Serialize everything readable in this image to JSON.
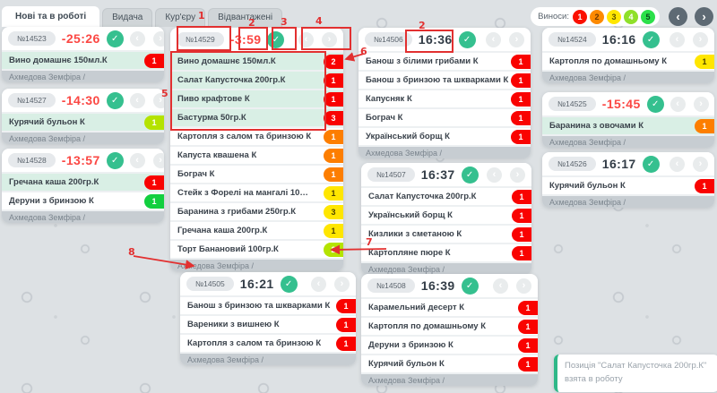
{
  "header": {
    "tabs": [
      {
        "label": "Нові та в роботі",
        "active": true
      },
      {
        "label": "Видача",
        "active": false
      },
      {
        "label": "Кур'єру",
        "active": false
      },
      {
        "label": "Відвантажені",
        "active": false
      }
    ],
    "takeouts_label": "Виноси:",
    "takeout_levels": [
      {
        "value": "1",
        "color": "#fb1000",
        "text_color": "#ffffff"
      },
      {
        "value": "2",
        "color": "#fd8a00",
        "text_color": "#6e3700"
      },
      {
        "value": "3",
        "color": "#ffe600",
        "text_color": "#5c5200"
      },
      {
        "value": "4",
        "color": "#8fe02a",
        "text_color": "#ffffff"
      },
      {
        "value": "5",
        "color": "#2ce04a",
        "text_color": "#0a4d1c"
      }
    ]
  },
  "icons": {
    "check": "✓",
    "prev": "‹",
    "next": "›"
  },
  "cards": [
    {
      "number": "№14523",
      "timer": "-25:26",
      "late": true,
      "waiter": "Ахмедова Земфіра /",
      "items": [
        {
          "name": "Вино домашнє 150мл.К",
          "qty": "1",
          "level": "red",
          "taken": true
        }
      ]
    },
    {
      "number": "№14527",
      "timer": "-14:30",
      "late": true,
      "waiter": "Ахмедова Земфіра /",
      "items": [
        {
          "name": "Курячий бульон К",
          "qty": "1",
          "level": "lime",
          "taken": true
        }
      ]
    },
    {
      "number": "№14528",
      "timer": "-13:57",
      "late": true,
      "waiter": "Ахмедова Земфіра /",
      "items": [
        {
          "name": "Гречана каша 200гр.К",
          "qty": "1",
          "level": "red",
          "taken": true
        },
        {
          "name": "Деруни з бринзою К",
          "qty": "1",
          "level": "green",
          "taken": false
        }
      ]
    },
    {
      "number": "№14529",
      "timer": "-3:59",
      "late": true,
      "waiter": "Ахмедова Земфіра /",
      "items": [
        {
          "name": "Вино домашнє 150мл.К",
          "qty": "2",
          "level": "red",
          "taken": true
        },
        {
          "name": "Салат Капусточка 200гр.К",
          "qty": "1",
          "level": "red",
          "taken": true
        },
        {
          "name": "Пиво крафтове К",
          "qty": "1",
          "level": "red",
          "taken": true
        },
        {
          "name": "Бастурма 50гр.К",
          "qty": "3",
          "level": "red",
          "taken": true
        },
        {
          "name": "Картопля з салом та бринзою К",
          "qty": "1",
          "level": "orange",
          "taken": false
        },
        {
          "name": "Капуста квашена К",
          "qty": "1",
          "level": "orange",
          "taken": false
        },
        {
          "name": "Бограч К",
          "qty": "1",
          "level": "orange",
          "taken": false
        },
        {
          "name": "Стейк з Форелі на мангалі 10…",
          "qty": "1",
          "level": "yellow",
          "taken": false
        },
        {
          "name": "Баранина з грибами 250гр.К",
          "qty": "3",
          "level": "yellow",
          "taken": false
        },
        {
          "name": "Гречана каша 200гр.К",
          "qty": "1",
          "level": "yellow",
          "taken": false
        },
        {
          "name": "Торт Банановий 100гр.К",
          "qty": "2",
          "level": "lime",
          "taken": false
        }
      ]
    },
    {
      "number": "№14505",
      "timer": "16:21",
      "late": false,
      "waiter": "Ахмедова Земфіра /",
      "items": [
        {
          "name": "Банош з бринзою та шкварками К",
          "qty": "1",
          "level": "red",
          "taken": false
        },
        {
          "name": "Вареники з вишнею К",
          "qty": "1",
          "level": "red",
          "taken": false
        },
        {
          "name": "Картопля з салом та бринзою К",
          "qty": "1",
          "level": "red",
          "taken": false
        }
      ]
    },
    {
      "number": "№14506",
      "timer": "16:36",
      "late": false,
      "waiter": "Ахмедова Земфіра /",
      "items": [
        {
          "name": "Банош з білими грибами К",
          "qty": "1",
          "level": "red",
          "taken": false
        },
        {
          "name": "Банош з бринзою та шкварками К",
          "qty": "1",
          "level": "red",
          "taken": false
        },
        {
          "name": "Капусняк К",
          "qty": "1",
          "level": "red",
          "taken": false
        },
        {
          "name": "Бограч К",
          "qty": "1",
          "level": "red",
          "taken": false
        },
        {
          "name": "Український борщ К",
          "qty": "1",
          "level": "red",
          "taken": false
        }
      ]
    },
    {
      "number": "№14507",
      "timer": "16:37",
      "late": false,
      "waiter": "Ахмедова Земфіра /",
      "items": [
        {
          "name": "Салат Капусточка 200гр.К",
          "qty": "1",
          "level": "red",
          "taken": false
        },
        {
          "name": "Український борщ К",
          "qty": "1",
          "level": "red",
          "taken": false
        },
        {
          "name": "Кизлики з сметаною К",
          "qty": "1",
          "level": "red",
          "taken": false
        },
        {
          "name": "Картопляне пюре К",
          "qty": "1",
          "level": "red",
          "taken": false
        }
      ]
    },
    {
      "number": "№14508",
      "timer": "16:39",
      "late": false,
      "waiter": "Ахмедова Земфіра /",
      "items": [
        {
          "name": "Карамельний десерт К",
          "qty": "1",
          "level": "red",
          "taken": false
        },
        {
          "name": "Картопля по домашньому К",
          "qty": "1",
          "level": "red",
          "taken": false
        },
        {
          "name": "Деруни з бринзою К",
          "qty": "1",
          "level": "red",
          "taken": false
        },
        {
          "name": "Курячий бульон К",
          "qty": "1",
          "level": "red",
          "taken": false
        }
      ]
    },
    {
      "number": "№14524",
      "timer": "16:16",
      "late": false,
      "waiter": "Ахмедова Земфіра /",
      "items": [
        {
          "name": "Картопля по домашньому К",
          "qty": "1",
          "level": "yellow",
          "taken": false
        }
      ]
    },
    {
      "number": "№14525",
      "timer": "-15:45",
      "late": true,
      "waiter": "Ахмедова Земфіра /",
      "items": [
        {
          "name": "Баранина з овочами К",
          "qty": "1",
          "level": "orange",
          "taken": true
        }
      ]
    },
    {
      "number": "№14526",
      "timer": "16:17",
      "late": false,
      "waiter": "Ахмедова Земфіра /",
      "items": [
        {
          "name": "Курячий бульон К",
          "qty": "1",
          "level": "red",
          "taken": false
        }
      ]
    }
  ],
  "toast": {
    "message": "Позиція \"Салат Капусточка 200гр.К\" взята в роботу"
  },
  "annotations": {
    "a1": "1",
    "a2": "2",
    "a2b": "2",
    "a3": "3",
    "a4": "4",
    "a5": "5",
    "a6": "6",
    "a7": "7",
    "a8": "8"
  },
  "colors": {
    "accent_green": "#35c08f",
    "late_red": "#fb4743",
    "badge_red": "#f90301",
    "badge_orange": "#fd7e00",
    "badge_yellow": "#ffe600",
    "badge_lime": "#b4e300",
    "badge_green": "#12cf3f",
    "taken_row_bg": "#d9efe5",
    "annotation_red": "#e23030",
    "toast_accent": "#2eb888"
  }
}
